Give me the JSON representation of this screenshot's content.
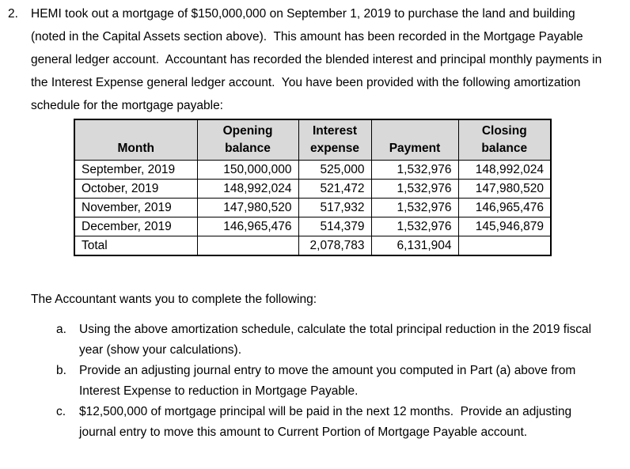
{
  "intro": {
    "number": "2.",
    "text": "HEMI took out a mortgage of $150,000,000 on September 1, 2019 to purchase the land and building (noted in the Capital Assets section above).  This amount has been recorded in the Mortgage Payable general ledger account.  Accountant has recorded the blended interest and principal monthly payments in the Interest Expense general ledger account.  You have been provided with the following amortization schedule for the mortgage payable:"
  },
  "table": {
    "header_bg": "#d9d9d9",
    "headers": [
      "Month",
      "Opening\nbalance",
      "Interest\nexpense",
      "Payment",
      "Closing\nbalance"
    ],
    "rows": [
      [
        "September, 2019",
        "150,000,000",
        "525,000",
        "1,532,976",
        "148,992,024"
      ],
      [
        "October, 2019",
        "148,992,024",
        "521,472",
        "1,532,976",
        "147,980,520"
      ],
      [
        "November, 2019",
        "147,980,520",
        "517,932",
        "1,532,976",
        "146,965,476"
      ],
      [
        "December, 2019",
        "146,965,476",
        "514,379",
        "1,532,976",
        "145,946,879"
      ],
      [
        "Total",
        "",
        "2,078,783",
        "6,131,904",
        ""
      ]
    ]
  },
  "prompt": "The Accountant wants you to complete the following:",
  "tasks": [
    {
      "marker": "a.",
      "text": "Using the above amortization schedule, calculate the total principal reduction in the 2019 fiscal year (show your calculations)."
    },
    {
      "marker": "b.",
      "text": "Provide an adjusting journal entry to move the amount you computed in Part (a) above from Interest Expense to reduction in Mortgage Payable."
    },
    {
      "marker": "c.",
      "text": "$12,500,000 of mortgage principal will be paid in the next 12 months.  Provide an adjusting journal entry to move this amount to Current Portion of Mortgage Payable account."
    }
  ]
}
